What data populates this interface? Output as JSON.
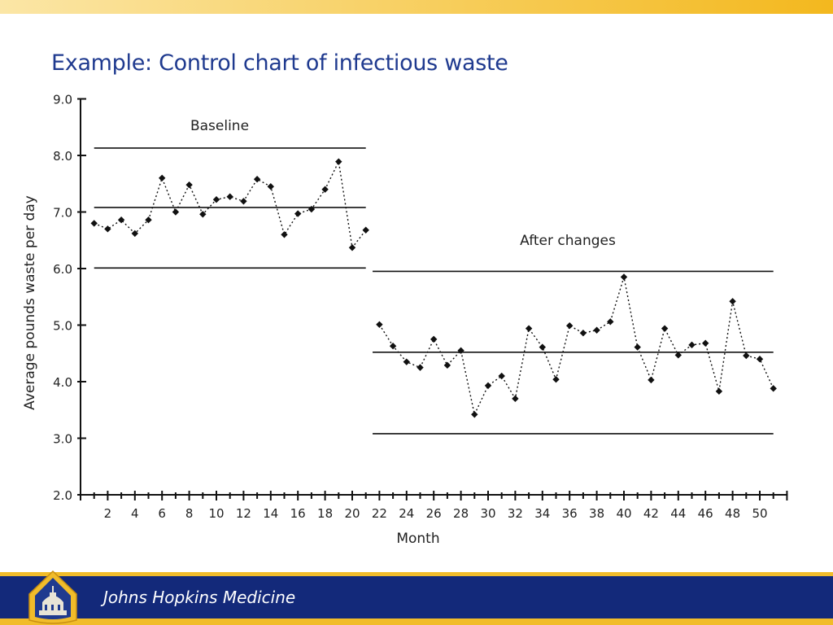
{
  "slide": {
    "title": "Example: Control chart of infectious waste",
    "footer_text": "Johns Hopkins Medicine",
    "accent_color": "#f1bc2a",
    "footer_color": "#13297a",
    "title_color": "#1f3a8f"
  },
  "chart_data": {
    "type": "line",
    "title": "",
    "xlabel": "Month",
    "ylabel": "Average pounds waste per day",
    "xlim": [
      0,
      52
    ],
    "ylim": [
      2.0,
      9.0
    ],
    "yticks": [
      2.0,
      3.0,
      4.0,
      5.0,
      6.0,
      7.0,
      8.0,
      9.0
    ],
    "ytick_labels": [
      "2.0",
      "3.0",
      "4.0",
      "5.0",
      "6.0",
      "7.0",
      "8.0",
      "9.0"
    ],
    "xtick_labels": [
      "2",
      "4",
      "6",
      "8",
      "10",
      "12",
      "14",
      "16",
      "18",
      "20",
      "22",
      "24",
      "26",
      "28",
      "30",
      "32",
      "34",
      "36",
      "38",
      "40",
      "42",
      "44",
      "46",
      "48",
      "50"
    ],
    "grid": false,
    "segments": [
      {
        "label": "Baseline",
        "x": [
          1,
          2,
          3,
          4,
          5,
          6,
          7,
          8,
          9,
          10,
          11,
          12,
          13,
          14,
          15,
          16,
          17,
          18,
          19,
          20,
          21
        ],
        "y": [
          6.8,
          6.7,
          6.86,
          6.62,
          6.86,
          7.6,
          7.0,
          7.48,
          6.96,
          7.22,
          7.27,
          7.19,
          7.58,
          7.45,
          6.6,
          6.97,
          7.05,
          7.4,
          7.89,
          6.37,
          6.68
        ],
        "center_line": 7.08,
        "upper_limit": 8.13,
        "lower_limit": 6.01,
        "line_x_range": [
          1,
          21
        ]
      },
      {
        "label": "After changes",
        "x": [
          22,
          23,
          24,
          25,
          26,
          27,
          28,
          29,
          30,
          31,
          32,
          33,
          34,
          35,
          36,
          37,
          38,
          39,
          40,
          41,
          42,
          43,
          44,
          45,
          46,
          47,
          48,
          49,
          50,
          51
        ],
        "y": [
          5.01,
          4.63,
          4.35,
          4.25,
          4.75,
          4.29,
          4.55,
          3.42,
          3.93,
          4.1,
          3.7,
          4.94,
          4.61,
          4.04,
          4.99,
          4.86,
          4.91,
          5.06,
          5.85,
          4.61,
          4.03,
          4.94,
          4.47,
          4.65,
          4.68,
          3.83,
          5.42,
          4.46,
          4.4,
          3.88
        ],
        "center_line": 4.52,
        "upper_limit": 5.95,
        "lower_limit": 3.08,
        "line_x_range": [
          21.5,
          51
        ]
      }
    ]
  }
}
